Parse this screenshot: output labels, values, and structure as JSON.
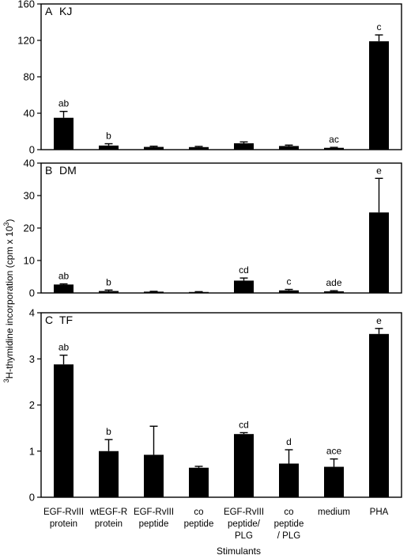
{
  "figure": {
    "ylabel_prefix": "3",
    "ylabel_main": "H-thymidine incorporation (cpm x 10",
    "ylabel_sup": "3",
    "ylabel_suffix": ")",
    "xlabel": "Stimulants",
    "categories": [
      [
        "EGF-RvIII",
        "protein"
      ],
      [
        "wtEGF-R",
        "protein"
      ],
      [
        "EGF-RvIII",
        "peptide"
      ],
      [
        "co",
        "peptide"
      ],
      [
        "EGF-RvIII",
        "peptide/",
        "PLG"
      ],
      [
        "co",
        "peptide",
        "/ PLG"
      ],
      [
        "medium"
      ],
      [
        "PHA"
      ]
    ]
  },
  "chart_data": [
    {
      "type": "bar",
      "panel": "A",
      "title": "KJ",
      "ylim": [
        0,
        160
      ],
      "yticks": [
        0,
        40,
        80,
        120,
        160
      ],
      "values": [
        35,
        4.5,
        3,
        2.8,
        7,
        4,
        2,
        119
      ],
      "errors": [
        7,
        2,
        0.8,
        0.8,
        1.5,
        1,
        0.5,
        7
      ],
      "labels": [
        "ab",
        "b",
        "",
        "",
        "",
        "",
        "ac",
        "c"
      ]
    },
    {
      "type": "bar",
      "panel": "B",
      "title": "DM",
      "ylim": [
        0,
        40
      ],
      "yticks": [
        0,
        10,
        20,
        30,
        40
      ],
      "values": [
        2.6,
        0.6,
        0.4,
        0.3,
        3.8,
        0.8,
        0.5,
        24.8
      ],
      "errors": [
        0.2,
        0.3,
        0.1,
        0.1,
        0.8,
        0.3,
        0.2,
        10.5
      ],
      "labels": [
        "ab",
        "b",
        "",
        "",
        "cd",
        "c",
        "ade",
        "e"
      ]
    },
    {
      "type": "bar",
      "panel": "C",
      "title": "TF",
      "ylim": [
        0,
        4
      ],
      "yticks": [
        0,
        1,
        2,
        3,
        4
      ],
      "values": [
        2.88,
        1.0,
        0.92,
        0.64,
        1.37,
        0.73,
        0.66,
        3.54
      ],
      "errors": [
        0.2,
        0.25,
        0.62,
        0.03,
        0.03,
        0.3,
        0.17,
        0.12
      ],
      "labels": [
        "ab",
        "b",
        "",
        "",
        "cd",
        "d",
        "ace",
        "e"
      ]
    }
  ]
}
